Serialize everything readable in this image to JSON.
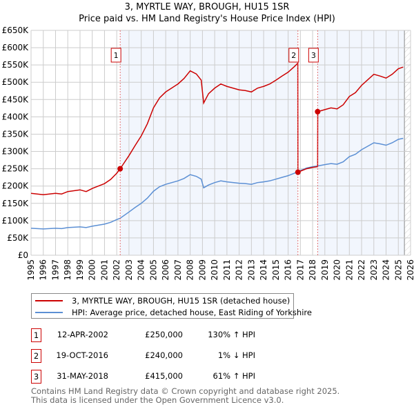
{
  "chart_data": {
    "type": "line",
    "title": "3, MYRTLE WAY, BROUGH, HU15 1SR",
    "subtitle": "Price paid vs. HM Land Registry's House Price Index (HPI)",
    "xlim": [
      1995,
      2026
    ],
    "ylim": [
      0,
      650000
    ],
    "x_ticks": [
      "1995",
      "1996",
      "1997",
      "1998",
      "1999",
      "2000",
      "2001",
      "2002",
      "2003",
      "2004",
      "2005",
      "2006",
      "2007",
      "2008",
      "2009",
      "2010",
      "2011",
      "2012",
      "2013",
      "2014",
      "2015",
      "2016",
      "2017",
      "2018",
      "2019",
      "2020",
      "2021",
      "2022",
      "2023",
      "2024",
      "2025",
      "2026"
    ],
    "y_ticks": [
      "£0",
      "£50K",
      "£100K",
      "£150K",
      "£200K",
      "£250K",
      "£300K",
      "£350K",
      "£400K",
      "£450K",
      "£500K",
      "£550K",
      "£600K",
      "£650K"
    ],
    "grid": true,
    "legend_placement": "below",
    "series": [
      {
        "name": "3, MYRTLE WAY, BROUGH, HU15 1SR (detached house)",
        "color": "#cc0000",
        "x": [
          1995,
          1996,
          1997,
          1997.5,
          1998,
          1999,
          1999.5,
          2000,
          2001,
          2001.5,
          2002,
          2002.28,
          2003,
          2003.5,
          2004,
          2004.5,
          2005,
          2005.5,
          2006,
          2007,
          2007.5,
          2008,
          2008.5,
          2008.9,
          2009.1,
          2009.5,
          2010,
          2010.5,
          2011,
          2011.5,
          2012,
          2012.5,
          2013,
          2013.5,
          2014,
          2014.5,
          2015,
          2015.5,
          2016,
          2016.5,
          2016.79,
          2016.8,
          2017.5,
          2018,
          2018.41,
          2018.42,
          2019,
          2019.5,
          2020,
          2020.5,
          2021,
          2021.5,
          2022,
          2022.5,
          2023,
          2023.5,
          2024,
          2024.5,
          2025,
          2025.4
        ],
        "y": [
          179,
          175,
          179,
          177,
          184,
          189,
          184,
          193,
          207,
          219,
          237,
          250,
          288,
          317,
          345,
          380,
          426,
          455,
          472,
          495,
          511,
          533,
          524,
          506,
          440,
          467,
          483,
          495,
          488,
          483,
          478,
          476,
          472,
          483,
          488,
          495,
          506,
          518,
          529,
          545,
          555,
          240,
          250,
          254,
          256,
          415,
          421,
          426,
          423,
          435,
          459,
          470,
          491,
          507,
          523,
          518,
          512,
          523,
          539,
          544
        ]
      },
      {
        "name": "HPI: Average price, detached house, East Riding of Yorkshire",
        "color": "#5b8fd4",
        "x": [
          1995,
          1996,
          1997,
          1997.5,
          1998,
          1999,
          1999.5,
          2000,
          2001,
          2001.5,
          2002,
          2002.28,
          2003,
          2003.5,
          2004,
          2004.5,
          2005,
          2005.5,
          2006,
          2007,
          2007.5,
          2008,
          2008.5,
          2008.9,
          2009.1,
          2009.5,
          2010,
          2010.5,
          2011,
          2011.5,
          2012,
          2012.5,
          2013,
          2013.5,
          2014,
          2014.5,
          2015,
          2015.5,
          2016,
          2016.5,
          2016.8,
          2017.5,
          2018,
          2018.41,
          2019,
          2019.5,
          2020,
          2020.5,
          2021,
          2021.5,
          2022,
          2022.5,
          2023,
          2023.5,
          2024,
          2024.5,
          2025,
          2025.4
        ],
        "y": [
          78,
          76,
          78,
          77,
          80,
          82,
          80,
          84,
          90,
          95,
          103,
          107,
          125,
          138,
          150,
          165,
          185,
          198,
          205,
          215,
          222,
          233,
          228,
          220,
          195,
          203,
          210,
          215,
          212,
          210,
          208,
          207,
          205,
          210,
          212,
          215,
          220,
          225,
          230,
          237,
          242,
          252,
          256,
          258,
          262,
          265,
          263,
          270,
          285,
          292,
          305,
          315,
          325,
          322,
          318,
          325,
          335,
          338
        ]
      }
    ],
    "y_unit_multiplier": 1000,
    "sales": [
      {
        "label": "1",
        "x": 2002.28,
        "date": "12-APR-2002",
        "price": "£250,000",
        "value": 250,
        "hpi": "130% ↑ HPI"
      },
      {
        "label": "2",
        "x": 2016.8,
        "date": "19-OCT-2016",
        "price": "£240,000",
        "value": 240,
        "hpi": "1% ↓ HPI"
      },
      {
        "label": "3",
        "x": 2018.41,
        "date": "31-MAY-2018",
        "price": "£415,000",
        "value": 415,
        "hpi": "61% ↑ HPI"
      }
    ],
    "shaded_ranges": [
      [
        2002.28,
        2016.8
      ],
      [
        2018.41,
        2025.5
      ]
    ],
    "hatched_from": 2025.5
  },
  "footer": [
    "Contains HM Land Registry data © Crown copyright and database right 2025.",
    "This data is licensed under the Open Government Licence v3.0."
  ]
}
